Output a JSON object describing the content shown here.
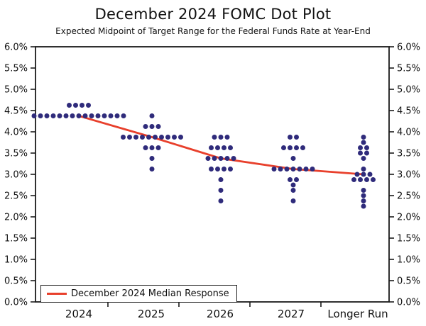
{
  "page": {
    "title": "December 2024 FOMC Dot Plot",
    "subtitle": "Expected Midpoint of Target Range for the Federal Funds Rate at Year-End"
  },
  "legend": {
    "median_label": "December 2024 Median Response"
  },
  "colors": {
    "dot": "#2f2b7b",
    "median_line": "#e8402c",
    "axis": "#1a1a1a",
    "background": "#ffffff"
  },
  "chart_data": {
    "type": "scatter",
    "title": "December 2024 FOMC Dot Plot",
    "subtitle": "Expected Midpoint of Target Range for the Federal Funds Rate at Year-End",
    "categories": [
      "2024",
      "2025",
      "2026",
      "2027",
      "Longer Run"
    ],
    "xlabel": "",
    "ylabel": "",
    "ylim": [
      0.0,
      6.0
    ],
    "ytick_step": 0.5,
    "ytick_labels": [
      "0.0%",
      "0.5%",
      "1.0%",
      "1.5%",
      "2.0%",
      "2.5%",
      "3.0%",
      "3.5%",
      "4.0%",
      "4.5%",
      "5.0%",
      "5.5%",
      "6.0%"
    ],
    "grid": false,
    "legend_position": "bottom-left",
    "dot_distributions": [
      {
        "category": "2024",
        "dots": [
          {
            "rate": 4.625,
            "count": 4
          },
          {
            "rate": 4.375,
            "count": 15
          }
        ]
      },
      {
        "category": "2025",
        "dots": [
          {
            "rate": 4.375,
            "count": 1
          },
          {
            "rate": 4.125,
            "count": 3
          },
          {
            "rate": 3.875,
            "count": 10
          },
          {
            "rate": 3.625,
            "count": 3
          },
          {
            "rate": 3.375,
            "count": 1
          },
          {
            "rate": 3.125,
            "count": 1
          }
        ]
      },
      {
        "category": "2026",
        "dots": [
          {
            "rate": 3.875,
            "count": 3
          },
          {
            "rate": 3.625,
            "count": 4
          },
          {
            "rate": 3.375,
            "count": 5
          },
          {
            "rate": 3.125,
            "count": 4
          },
          {
            "rate": 2.875,
            "count": 1
          },
          {
            "rate": 2.625,
            "count": 1
          },
          {
            "rate": 2.375,
            "count": 1
          }
        ]
      },
      {
        "category": "2027",
        "dots": [
          {
            "rate": 3.875,
            "count": 2
          },
          {
            "rate": 3.625,
            "count": 4
          },
          {
            "rate": 3.375,
            "count": 1
          },
          {
            "rate": 3.125,
            "count": 7
          },
          {
            "rate": 2.875,
            "count": 2
          },
          {
            "rate": 2.75,
            "count": 1
          },
          {
            "rate": 2.625,
            "count": 1
          },
          {
            "rate": 2.375,
            "count": 1
          }
        ]
      },
      {
        "category": "Longer Run",
        "dots": [
          {
            "rate": 3.875,
            "count": 1
          },
          {
            "rate": 3.75,
            "count": 1
          },
          {
            "rate": 3.625,
            "count": 2
          },
          {
            "rate": 3.5,
            "count": 2
          },
          {
            "rate": 3.375,
            "count": 1
          },
          {
            "rate": 3.125,
            "count": 1
          },
          {
            "rate": 3.0,
            "count": 3
          },
          {
            "rate": 2.875,
            "count": 4
          },
          {
            "rate": 2.625,
            "count": 1
          },
          {
            "rate": 2.5,
            "count": 1
          },
          {
            "rate": 2.375,
            "count": 1
          },
          {
            "rate": 2.25,
            "count": 1
          }
        ]
      }
    ],
    "median_series": {
      "name": "December 2024 Median Response",
      "values": [
        4.375,
        3.875,
        3.375,
        3.125,
        3.0
      ]
    }
  }
}
